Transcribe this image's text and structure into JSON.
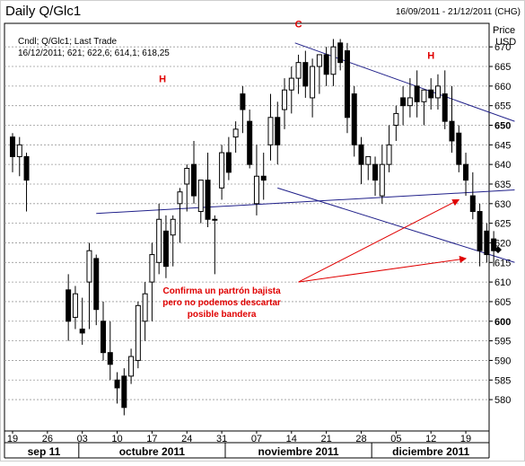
{
  "chart_data": {
    "type": "candlestick",
    "title": "Daily Q/Glc1",
    "date_range": "16/09/2011 - 21/12/2011 (CHG)",
    "info_line1": "Cndl; Q/Glc1; Last Trade",
    "info_line2": "16/12/2011; 621; 622,6; 614,1; 618,25",
    "y_axis": {
      "title_line1": "Price",
      "title_line2": "USD",
      "min": 572,
      "max": 676,
      "ticks": [
        580,
        585,
        590,
        595,
        600,
        605,
        610,
        615,
        620,
        625,
        630,
        635,
        640,
        645,
        650,
        655,
        660,
        665,
        670
      ],
      "bold_ticks": [
        600,
        650
      ],
      "last_marker": 618.25,
      "grid": true
    },
    "x_axis": {
      "tick_labels": [
        "19",
        "26",
        "03",
        "10",
        "17",
        "24",
        "31",
        "07",
        "14",
        "21",
        "28",
        "05",
        "12",
        "19"
      ],
      "tick_index": [
        0,
        5,
        10,
        15,
        20,
        25,
        30,
        35,
        40,
        45,
        50,
        55,
        60,
        65
      ],
      "months": [
        {
          "label": "sep 11",
          "start": 0,
          "end": 9
        },
        {
          "label": "octubre 2011",
          "start": 10,
          "end": 30
        },
        {
          "label": "noviembre 2011",
          "start": 31,
          "end": 51
        },
        {
          "label": "diciembre 2011",
          "start": 52,
          "end": 68
        }
      ]
    },
    "candles": [
      {
        "o": 647,
        "h": 648,
        "l": 638,
        "c": 642
      },
      {
        "o": 642,
        "h": 647,
        "l": 637,
        "c": 645
      },
      {
        "o": 642,
        "h": 643,
        "l": 628,
        "c": 636
      },
      {
        "o": 608,
        "h": 612,
        "l": 595,
        "c": 600
      },
      {
        "o": 601,
        "h": 609,
        "l": 598,
        "c": 607
      },
      {
        "o": 598,
        "h": 606,
        "l": 594,
        "c": 597
      },
      {
        "o": 610,
        "h": 620,
        "l": 598,
        "c": 618
      },
      {
        "o": 616,
        "h": 617,
        "l": 599,
        "c": 603
      },
      {
        "o": 600,
        "h": 605,
        "l": 590,
        "c": 592
      },
      {
        "o": 592,
        "h": 600,
        "l": 585,
        "c": 589
      },
      {
        "o": 585,
        "h": 587,
        "l": 579,
        "c": 583
      },
      {
        "o": 586,
        "h": 588,
        "l": 576,
        "c": 578
      },
      {
        "o": 586,
        "h": 593,
        "l": 584,
        "c": 591
      },
      {
        "o": 590,
        "h": 605,
        "l": 588,
        "c": 604
      },
      {
        "o": 600,
        "h": 610,
        "l": 595,
        "c": 607
      },
      {
        "o": 610,
        "h": 620,
        "l": 600,
        "c": 617
      },
      {
        "o": 615,
        "h": 630,
        "l": 612,
        "c": 626
      },
      {
        "o": 623,
        "h": 627,
        "l": 611,
        "c": 614
      },
      {
        "o": 622,
        "h": 627,
        "l": 614,
        "c": 626
      },
      {
        "o": 630,
        "h": 634,
        "l": 620,
        "c": 633
      },
      {
        "o": 635,
        "h": 640,
        "l": 628,
        "c": 639
      },
      {
        "o": 640,
        "h": 646,
        "l": 630,
        "c": 632
      },
      {
        "o": 628,
        "h": 636,
        "l": 625,
        "c": 636
      },
      {
        "o": 636,
        "h": 643,
        "l": 624,
        "c": 626
      },
      {
        "o": 626,
        "h": 627,
        "l": 612,
        "c": 626
      },
      {
        "o": 634,
        "h": 645,
        "l": 631,
        "c": 643
      },
      {
        "o": 643,
        "h": 647,
        "l": 636,
        "c": 638
      },
      {
        "o": 647,
        "h": 651,
        "l": 643,
        "c": 649
      },
      {
        "o": 658,
        "h": 660,
        "l": 648,
        "c": 654
      },
      {
        "o": 651,
        "h": 654,
        "l": 639,
        "c": 640
      },
      {
        "o": 630,
        "h": 645,
        "l": 627,
        "c": 637
      },
      {
        "o": 637,
        "h": 643,
        "l": 631,
        "c": 636
      },
      {
        "o": 645,
        "h": 658,
        "l": 641,
        "c": 652
      },
      {
        "o": 652,
        "h": 656,
        "l": 640,
        "c": 645
      },
      {
        "o": 654,
        "h": 662,
        "l": 649,
        "c": 659
      },
      {
        "o": 659,
        "h": 665,
        "l": 653,
        "c": 662
      },
      {
        "o": 662,
        "h": 668,
        "l": 658,
        "c": 666
      },
      {
        "o": 666,
        "h": 669,
        "l": 657,
        "c": 660
      },
      {
        "o": 657,
        "h": 667,
        "l": 652,
        "c": 665
      },
      {
        "o": 665,
        "h": 668,
        "l": 658,
        "c": 668
      },
      {
        "o": 668,
        "h": 670,
        "l": 660,
        "c": 663
      },
      {
        "o": 663,
        "h": 672,
        "l": 660,
        "c": 670
      },
      {
        "o": 671,
        "h": 672,
        "l": 664,
        "c": 666
      },
      {
        "o": 669,
        "h": 671,
        "l": 648,
        "c": 652
      },
      {
        "o": 658,
        "h": 660,
        "l": 642,
        "c": 645
      },
      {
        "o": 645,
        "h": 647,
        "l": 635,
        "c": 640
      },
      {
        "o": 640,
        "h": 642,
        "l": 636,
        "c": 642
      },
      {
        "o": 640,
        "h": 642,
        "l": 632,
        "c": 636
      },
      {
        "o": 632,
        "h": 645,
        "l": 630,
        "c": 640
      },
      {
        "o": 640,
        "h": 650,
        "l": 638,
        "c": 645
      },
      {
        "o": 650,
        "h": 655,
        "l": 646,
        "c": 653
      },
      {
        "o": 657,
        "h": 660,
        "l": 650,
        "c": 655
      },
      {
        "o": 655,
        "h": 662,
        "l": 652,
        "c": 657
      },
      {
        "o": 660,
        "h": 664,
        "l": 652,
        "c": 656
      },
      {
        "o": 656,
        "h": 659,
        "l": 650,
        "c": 659
      },
      {
        "o": 659,
        "h": 662,
        "l": 654,
        "c": 657
      },
      {
        "o": 657,
        "h": 663,
        "l": 654,
        "c": 660
      },
      {
        "o": 658,
        "h": 664,
        "l": 649,
        "c": 651
      },
      {
        "o": 651,
        "h": 660,
        "l": 643,
        "c": 646
      },
      {
        "o": 648,
        "h": 650,
        "l": 638,
        "c": 640
      },
      {
        "o": 640,
        "h": 643,
        "l": 632,
        "c": 636
      },
      {
        "o": 632,
        "h": 638,
        "l": 626,
        "c": 628
      },
      {
        "o": 628,
        "h": 630,
        "l": 614,
        "c": 618
      },
      {
        "o": 623,
        "h": 625,
        "l": 615,
        "c": 617
      },
      {
        "o": 621,
        "h": 623,
        "l": 614,
        "c": 618
      }
    ],
    "candles_x": [
      0,
      1,
      2,
      8,
      9,
      10,
      11,
      12,
      13,
      14,
      15,
      16,
      17,
      18,
      19,
      20,
      21,
      22,
      23,
      24,
      25,
      26,
      27,
      28,
      29,
      30,
      31,
      32,
      33,
      34,
      35,
      36,
      37,
      38,
      39,
      40,
      41,
      42,
      43,
      44,
      45,
      46,
      47,
      48,
      49,
      50,
      51,
      52,
      53,
      54,
      55,
      56,
      57,
      58,
      59,
      60,
      61,
      62,
      63,
      64,
      65,
      66,
      67,
      68,
      69
    ],
    "trendlines": [
      {
        "name": "resistance",
        "x1": 40.5,
        "y1": 671,
        "x2": 72,
        "y2": 651
      },
      {
        "name": "upper-support",
        "x1": 12,
        "y1": 627.5,
        "x2": 72,
        "y2": 633.5
      },
      {
        "name": "lower-support",
        "x1": 38,
        "y1": 634,
        "x2": 72,
        "y2": 615
      }
    ],
    "pattern_labels": [
      {
        "text": "H",
        "x": 21.5,
        "y": 661
      },
      {
        "text": "C",
        "x": 41,
        "y": 675
      },
      {
        "text": "H",
        "x": 60,
        "y": 667
      }
    ],
    "annotation": {
      "lines": [
        "Confirma un partrón bajista",
        "pero no podemos descartar",
        "posible bandera"
      ],
      "x": 30,
      "y": 607,
      "arrows": [
        {
          "from_x": 41,
          "from_y": 610,
          "to_x": 64,
          "to_y": 631
        },
        {
          "from_x": 41,
          "from_y": 610,
          "to_x": 65,
          "to_y": 616
        }
      ]
    },
    "colors": {
      "candle": "#000000",
      "trendline": "#20208a",
      "annotation": "#e00000",
      "grid": "#9a9a9a",
      "marker": "#000000"
    }
  }
}
